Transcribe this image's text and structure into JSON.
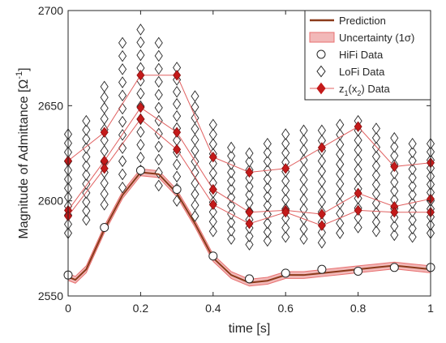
{
  "chart_data": {
    "type": "line",
    "xlabel": "time [s]",
    "ylabel_main": "Magnitude of Admittance [Ω",
    "ylabel_sup": "-1",
    "ylabel_end": "]",
    "xlim": [
      0,
      1
    ],
    "ylim": [
      2550,
      2700
    ],
    "xticks": [
      "0",
      "0.2",
      "0.4",
      "0.6",
      "0.8",
      "1"
    ],
    "xtick_values": [
      0,
      0.2,
      0.4,
      0.6,
      0.8,
      1
    ],
    "yticks": [
      "2550",
      "2600",
      "2650",
      "2700"
    ],
    "ytick_values": [
      2550,
      2600,
      2650,
      2700
    ],
    "grid": false,
    "legend_position": "top-right",
    "legend": [
      {
        "label": "Prediction",
        "marker": "line"
      },
      {
        "label": "Uncertainty (1σ)",
        "marker": "band"
      },
      {
        "label": "HiFi Data",
        "marker": "circle"
      },
      {
        "label": "LoFi Data",
        "marker": "diamond"
      },
      {
        "label": "z",
        "sub1": "1",
        "mid": "(x",
        "sub2": "2",
        "end": ") Data",
        "marker": "filled-diamond"
      }
    ],
    "colors": {
      "prediction": "#8b3a1a",
      "band": "#f2b8b8",
      "band_edge": "#e87070",
      "z_fill": "#c41a1a",
      "z_line": "#e06060"
    },
    "prediction": {
      "x": [
        0,
        0.02,
        0.05,
        0.1,
        0.15,
        0.2,
        0.25,
        0.3,
        0.35,
        0.4,
        0.45,
        0.5,
        0.55,
        0.6,
        0.65,
        0.7,
        0.75,
        0.8,
        0.85,
        0.9,
        0.95,
        1.0
      ],
      "y": [
        2560,
        2558.5,
        2564,
        2585,
        2603,
        2615,
        2614,
        2604,
        2588,
        2570,
        2561,
        2557,
        2558,
        2561,
        2561,
        2562,
        2563,
        2564,
        2565,
        2566,
        2565,
        2564
      ],
      "sigma": 1.8
    },
    "hifi": {
      "x": [
        0,
        0.1,
        0.2,
        0.3,
        0.4,
        0.5,
        0.6,
        0.7,
        0.8,
        0.9,
        1.0
      ],
      "y": [
        2561,
        2586,
        2616,
        2606,
        2571,
        2559,
        2562,
        2564,
        2563,
        2565,
        2565
      ]
    },
    "lofi": {
      "x": [
        0,
        0.05,
        0.1,
        0.15,
        0.2,
        0.25,
        0.3,
        0.35,
        0.4,
        0.45,
        0.5,
        0.55,
        0.6,
        0.65,
        0.7,
        0.75,
        0.8,
        0.85,
        0.9,
        0.95,
        1.0
      ],
      "ymin": [
        2583,
        2590,
        2598,
        2607,
        2616,
        2608,
        2600,
        2592,
        2584,
        2580,
        2577,
        2579,
        2581,
        2580,
        2578,
        2583,
        2586,
        2584,
        2582,
        2581,
        2583
      ],
      "ymax": [
        2635,
        2642,
        2660,
        2683,
        2690,
        2683,
        2670,
        2655,
        2640,
        2628,
        2625,
        2630,
        2635,
        2637,
        2637,
        2640,
        2642,
        2638,
        2633,
        2630,
        2630
      ]
    },
    "z_series": [
      {
        "x": [
          0,
          0.1,
          0.2,
          0.3,
          0.4,
          0.5,
          0.6,
          0.7,
          0.8,
          0.9,
          1.0
        ],
        "y": [
          2621,
          2636,
          2666,
          2666,
          2623,
          2615,
          2617,
          2628,
          2639,
          2618,
          2620
        ]
      },
      {
        "x": [
          0,
          0.1,
          0.2,
          0.3,
          0.4,
          0.5,
          0.6,
          0.7,
          0.8,
          0.9,
          1.0
        ],
        "y": [
          2595,
          2621,
          2649,
          2636,
          2606,
          2594,
          2595,
          2593,
          2604,
          2597,
          2601
        ]
      },
      {
        "x": [
          0,
          0.1,
          0.2,
          0.3,
          0.4,
          0.5,
          0.6,
          0.7,
          0.8,
          0.9,
          1.0
        ],
        "y": [
          2592,
          2617,
          2643,
          2627,
          2598,
          2588,
          2594,
          2587,
          2595,
          2594,
          2594
        ]
      }
    ]
  }
}
